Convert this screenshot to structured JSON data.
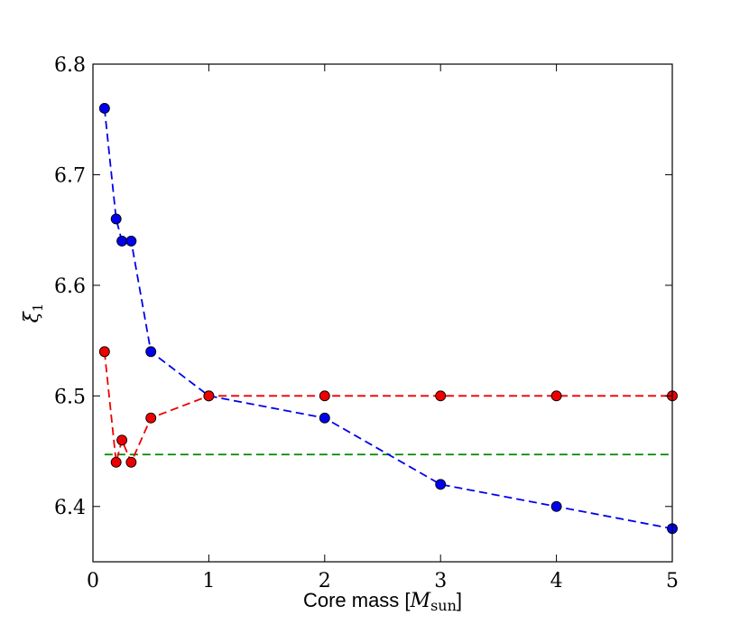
{
  "chart_data": {
    "type": "line",
    "title": "",
    "xlabel": "Core mass [",
    "xlabel_math": "M",
    "xlabel_sub": "sun",
    "xlabel_close": "]",
    "ylabel": "ξ",
    "ylabel_sub": "1",
    "xlim": [
      0,
      5
    ],
    "ylim": [
      6.35,
      6.8
    ],
    "xticks": [
      0,
      1,
      2,
      3,
      4,
      5
    ],
    "yticks": [
      6.4,
      6.5,
      6.6,
      6.7,
      6.8
    ],
    "xtick_labels": [
      "0",
      "1",
      "2",
      "3",
      "4",
      "5"
    ],
    "ytick_labels": [
      "6.4",
      "6.5",
      "6.6",
      "6.7",
      "6.8"
    ],
    "series": [
      {
        "name": "blue",
        "color": "#0000ee",
        "line_style": "dashed",
        "x": [
          0.1,
          0.2,
          0.25,
          0.33,
          0.5,
          1.0,
          2.0,
          3.0,
          4.0,
          5.0
        ],
        "y": [
          6.76,
          6.66,
          6.64,
          6.64,
          6.54,
          6.5,
          6.48,
          6.42,
          6.4,
          6.38
        ]
      },
      {
        "name": "red",
        "color": "#ee0000",
        "line_style": "dashed",
        "x": [
          0.1,
          0.2,
          0.25,
          0.33,
          0.5,
          1.0,
          2.0,
          3.0,
          4.0,
          5.0
        ],
        "y": [
          6.54,
          6.44,
          6.46,
          6.44,
          6.48,
          6.5,
          6.5,
          6.5,
          6.5,
          6.5
        ]
      }
    ],
    "reference_lines": [
      {
        "name": "green-reference",
        "color": "#008800",
        "line_style": "dashed",
        "y": 6.447,
        "x_from": 0.1,
        "x_to": 5.0
      }
    ]
  }
}
